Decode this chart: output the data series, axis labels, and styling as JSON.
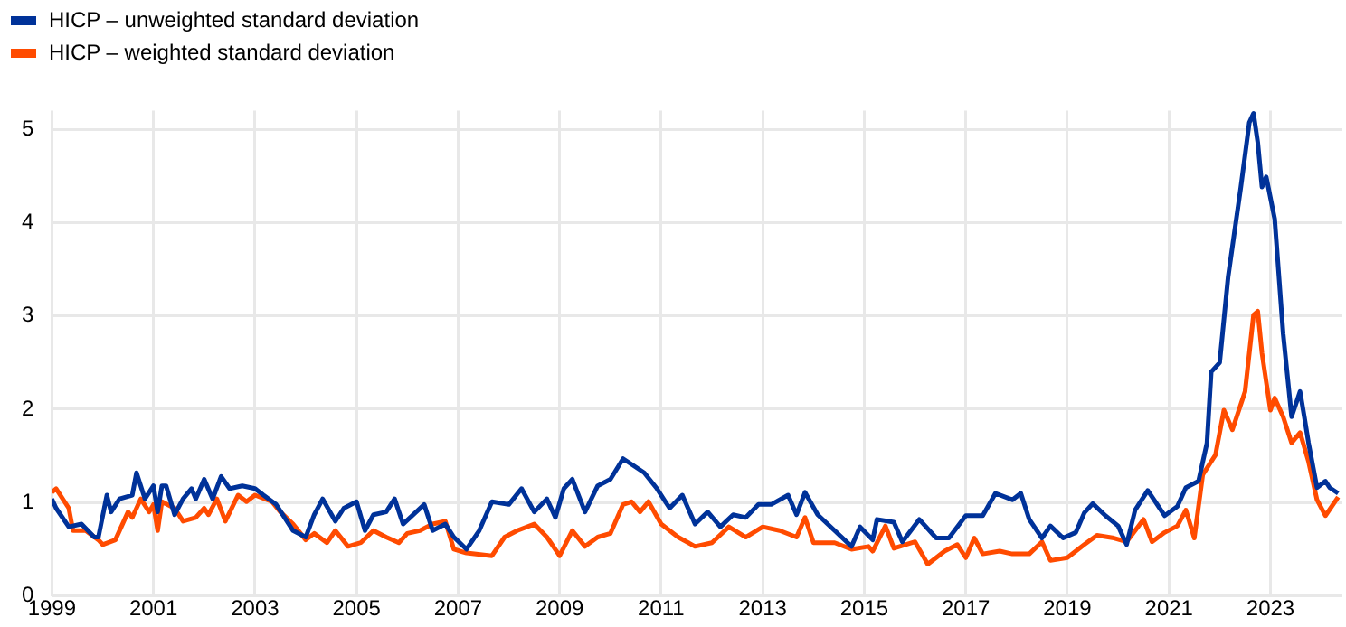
{
  "chart_data": {
    "type": "line",
    "series": [
      {
        "name": "HICP – unweighted standard deviation",
        "color": "#003299",
        "x": [
          "1999-01",
          "1999-02",
          "1999-05",
          "1999-08",
          "1999-11",
          "1999-12",
          "2000-02",
          "2000-03",
          "2000-05",
          "2000-08",
          "2000-09",
          "2000-11",
          "2001-01",
          "2001-02",
          "2001-03",
          "2001-04",
          "2001-06",
          "2001-08",
          "2001-10",
          "2001-11",
          "2002-01",
          "2002-03",
          "2002-05",
          "2002-07",
          "2002-10",
          "2003-01",
          "2003-03",
          "2003-06",
          "2003-10",
          "2004-01",
          "2004-03",
          "2004-05",
          "2004-08",
          "2004-10",
          "2005-01",
          "2005-03",
          "2005-05",
          "2005-08",
          "2005-10",
          "2005-12",
          "2006-05",
          "2006-07",
          "2006-10",
          "2006-12",
          "2007-03",
          "2007-06",
          "2007-09",
          "2008-01",
          "2008-04",
          "2008-07",
          "2008-10",
          "2008-12",
          "2009-02",
          "2009-04",
          "2009-07",
          "2009-10",
          "2010-01",
          "2010-04",
          "2010-07",
          "2010-09",
          "2010-12",
          "2011-03",
          "2011-06",
          "2011-09",
          "2011-12",
          "2012-03",
          "2012-06",
          "2012-09",
          "2012-12",
          "2013-03",
          "2013-07",
          "2013-09",
          "2013-11",
          "2014-02",
          "2014-06",
          "2014-10",
          "2014-12",
          "2015-03",
          "2015-04",
          "2015-08",
          "2015-10",
          "2016-02",
          "2016-06",
          "2016-09",
          "2017-01",
          "2017-05",
          "2017-08",
          "2017-12",
          "2018-02",
          "2018-04",
          "2018-07",
          "2018-09",
          "2018-12",
          "2019-03",
          "2019-05",
          "2019-07",
          "2019-10",
          "2020-01",
          "2020-03",
          "2020-05",
          "2020-08",
          "2020-12",
          "2021-03",
          "2021-05",
          "2021-08",
          "2021-10",
          "2021-11",
          "2022-01",
          "2022-03",
          "2022-06",
          "2022-08",
          "2022-09",
          "2022-10",
          "2022-11",
          "2022-12",
          "2023-02",
          "2023-04",
          "2023-06",
          "2023-08",
          "2023-09",
          "2023-10",
          "2023-12",
          "2024-02",
          "2024-03",
          "2024-05"
        ],
        "values": [
          1.04,
          0.94,
          0.74,
          0.77,
          0.63,
          0.63,
          1.08,
          0.9,
          1.04,
          1.08,
          1.32,
          1.04,
          1.18,
          0.9,
          1.18,
          1.18,
          0.87,
          1.04,
          1.15,
          1.04,
          1.25,
          1.04,
          1.28,
          1.15,
          1.18,
          1.15,
          1.08,
          0.98,
          0.7,
          0.63,
          0.87,
          1.04,
          0.8,
          0.94,
          1.01,
          0.7,
          0.87,
          0.9,
          1.04,
          0.77,
          0.98,
          0.7,
          0.77,
          0.63,
          0.5,
          0.7,
          1.01,
          0.98,
          1.15,
          0.9,
          1.04,
          0.84,
          1.15,
          1.25,
          0.9,
          1.18,
          1.25,
          1.47,
          1.38,
          1.32,
          1.15,
          0.94,
          1.08,
          0.77,
          0.9,
          0.74,
          0.87,
          0.84,
          0.98,
          0.98,
          1.08,
          0.87,
          1.11,
          0.87,
          0.7,
          0.53,
          0.74,
          0.6,
          0.82,
          0.79,
          0.58,
          0.82,
          0.62,
          0.62,
          0.86,
          0.86,
          1.1,
          1.03,
          1.1,
          0.82,
          0.62,
          0.75,
          0.62,
          0.68,
          0.89,
          0.99,
          0.86,
          0.75,
          0.55,
          0.92,
          1.13,
          0.86,
          0.96,
          1.16,
          1.23,
          1.64,
          2.4,
          2.5,
          3.42,
          4.38,
          5.07,
          5.17,
          4.86,
          4.38,
          4.49,
          4.04,
          2.81,
          1.92,
          2.19,
          1.92,
          1.64,
          1.16,
          1.23,
          1.16,
          1.1
        ]
      },
      {
        "name": "HICP – weighted standard deviation",
        "color": "#ff4b00",
        "x": [
          "1999-01",
          "1999-02",
          "1999-05",
          "1999-06",
          "1999-09",
          "1999-12",
          "2000-01",
          "2000-04",
          "2000-07",
          "2000-08",
          "2000-10",
          "2000-12",
          "2001-01",
          "2001-02",
          "2001-03",
          "2001-06",
          "2001-08",
          "2001-11",
          "2002-01",
          "2002-02",
          "2002-04",
          "2002-06",
          "2002-09",
          "2002-11",
          "2003-01",
          "2003-05",
          "2003-07",
          "2003-10",
          "2004-01",
          "2004-03",
          "2004-06",
          "2004-08",
          "2004-11",
          "2005-02",
          "2005-05",
          "2005-08",
          "2005-11",
          "2006-01",
          "2006-04",
          "2006-07",
          "2006-10",
          "2006-12",
          "2007-03",
          "2007-09",
          "2007-12",
          "2008-03",
          "2008-07",
          "2008-10",
          "2009-01",
          "2009-04",
          "2009-07",
          "2009-10",
          "2010-01",
          "2010-04",
          "2010-06",
          "2010-08",
          "2010-10",
          "2011-01",
          "2011-05",
          "2011-09",
          "2012-01",
          "2012-05",
          "2012-09",
          "2013-01",
          "2013-05",
          "2013-09",
          "2013-11",
          "2014-01",
          "2014-06",
          "2014-10",
          "2015-02",
          "2015-03",
          "2015-06",
          "2015-08",
          "2016-01",
          "2016-04",
          "2016-08",
          "2016-11",
          "2017-01",
          "2017-03",
          "2017-05",
          "2017-09",
          "2017-12",
          "2018-04",
          "2018-07",
          "2018-09",
          "2019-01",
          "2019-05",
          "2019-08",
          "2019-12",
          "2020-03",
          "2020-07",
          "2020-09",
          "2020-12",
          "2021-03",
          "2021-05",
          "2021-07",
          "2021-09",
          "2021-12",
          "2022-02",
          "2022-04",
          "2022-07",
          "2022-09",
          "2022-10",
          "2022-11",
          "2023-01",
          "2023-02",
          "2023-04",
          "2023-06",
          "2023-08",
          "2023-10",
          "2023-12",
          "2024-02",
          "2024-05"
        ],
        "values": [
          1.11,
          1.15,
          0.94,
          0.7,
          0.7,
          0.6,
          0.55,
          0.6,
          0.9,
          0.84,
          1.04,
          0.9,
          0.98,
          0.7,
          1.01,
          0.94,
          0.8,
          0.84,
          0.94,
          0.87,
          1.04,
          0.8,
          1.08,
          1.01,
          1.08,
          1.01,
          0.9,
          0.77,
          0.6,
          0.67,
          0.57,
          0.7,
          0.53,
          0.57,
          0.7,
          0.63,
          0.57,
          0.67,
          0.7,
          0.77,
          0.8,
          0.5,
          0.46,
          0.43,
          0.63,
          0.7,
          0.77,
          0.63,
          0.43,
          0.7,
          0.53,
          0.63,
          0.67,
          0.98,
          1.01,
          0.9,
          1.01,
          0.77,
          0.63,
          0.53,
          0.57,
          0.74,
          0.63,
          0.74,
          0.7,
          0.63,
          0.84,
          0.57,
          0.57,
          0.5,
          0.53,
          0.48,
          0.75,
          0.51,
          0.58,
          0.34,
          0.48,
          0.55,
          0.41,
          0.62,
          0.45,
          0.48,
          0.45,
          0.45,
          0.58,
          0.38,
          0.41,
          0.55,
          0.65,
          0.62,
          0.58,
          0.82,
          0.58,
          0.68,
          0.75,
          0.92,
          0.62,
          1.3,
          1.51,
          1.99,
          1.78,
          2.19,
          3.01,
          3.05,
          2.6,
          1.99,
          2.12,
          1.92,
          1.64,
          1.75,
          1.44,
          1.03,
          0.86,
          1.06
        ]
      }
    ],
    "xlim": [
      "1999-01",
      "2024-06"
    ],
    "xticks": [
      "1999",
      "2001",
      "2003",
      "2005",
      "2007",
      "2009",
      "2011",
      "2013",
      "2015",
      "2017",
      "2019",
      "2021",
      "2023"
    ],
    "ylim": [
      0,
      5.2
    ],
    "yticks": [
      0,
      1,
      2,
      3,
      4,
      5
    ],
    "grid": true,
    "legend": "top left",
    "marker": "none",
    "line_style": "solid"
  }
}
